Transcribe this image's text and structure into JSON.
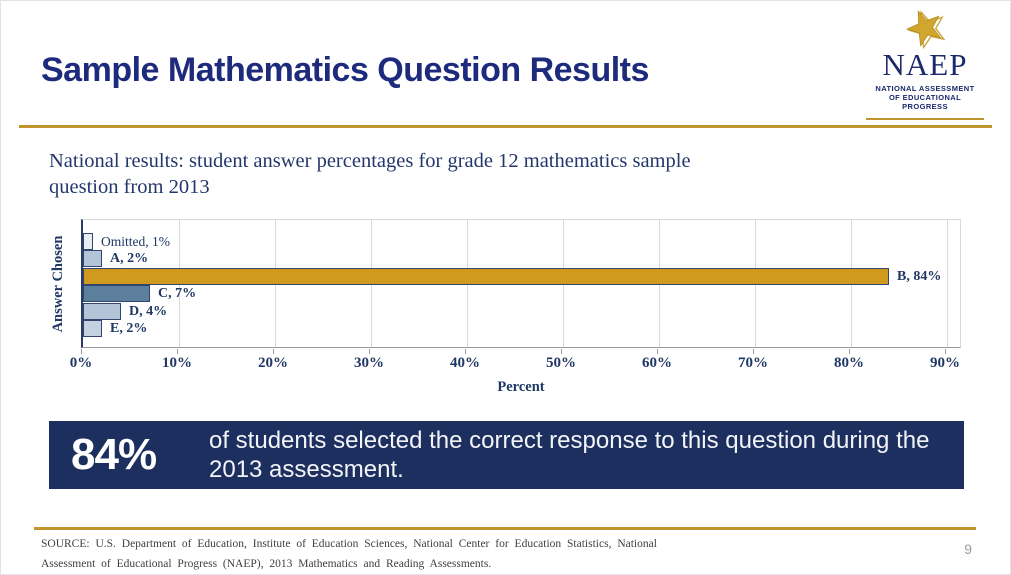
{
  "slide": {
    "title": "Sample Mathematics Question Results",
    "subtitle": "National results: student answer percentages for grade 12 mathematics sample question from 2013",
    "page_number": "9"
  },
  "logo": {
    "name": "NAEP",
    "tagline_line1": "NATIONAL ASSESSMENT",
    "tagline_line2": "OF EDUCATIONAL",
    "tagline_line3": "PROGRESS",
    "star_icon": "gold-star-icon"
  },
  "chart_data": {
    "type": "bar",
    "orientation": "horizontal",
    "title": "",
    "categories": [
      "Omitted",
      "A",
      "B",
      "C",
      "D",
      "E"
    ],
    "values": [
      1,
      2,
      84,
      7,
      4,
      2
    ],
    "data_labels": [
      "Omitted, 1%",
      "A, 2%",
      "B, 84%",
      "C, 7%",
      "D, 4%",
      "E, 2%"
    ],
    "bar_colors": [
      "#e8edf4",
      "#b3c3d8",
      "#cf9a1d",
      "#5d7f9e",
      "#b3c3d8",
      "#c5d1e0"
    ],
    "xlabel": "Percent",
    "ylabel": "Answer Chosen",
    "xlim": [
      0,
      90
    ],
    "xtick_values": [
      0,
      10,
      20,
      30,
      40,
      50,
      60,
      70,
      80,
      90
    ],
    "xtick_labels": [
      "0%",
      "10%",
      "20%",
      "30%",
      "40%",
      "50%",
      "60%",
      "70%",
      "80%",
      "90%"
    ],
    "grid": "vertical-gridlines-on",
    "legend": "none",
    "correct_answer_highlight": "B"
  },
  "callout": {
    "stat": "84%",
    "text": "of students selected the correct response to this question during the 2013 assessment."
  },
  "footer": {
    "source_line1": "SOURCE: U.S. Department of Education, Institute of Education Sciences, National Center for Education Statistics, National",
    "source_line2": "Assessment of Educational Progress (NAEP), 2013 Mathematics and Reading Assessments."
  },
  "colors": {
    "title_navy": "#1e2b7d",
    "chart_navy": "#1f3864",
    "callout_navy": "#1c2f5e",
    "accent_gold": "#c0962c",
    "correct_bar_gold": "#cf9a1d"
  }
}
